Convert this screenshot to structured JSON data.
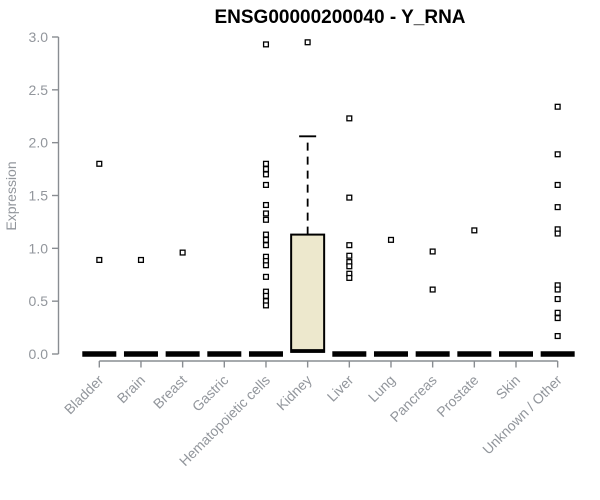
{
  "chart_data": {
    "type": "boxplot",
    "title": "ENSG00000200040 - Y_RNA",
    "ylabel": "Expression",
    "xlabel": "",
    "ylim": [
      0.0,
      3.0
    ],
    "yticks": [
      0.0,
      0.5,
      1.0,
      1.5,
      2.0,
      2.5,
      3.0
    ],
    "grid": false,
    "legend_position": "none",
    "categories": [
      "Bladder",
      "Brain",
      "Breast",
      "Gastric",
      "Hematopoietic cells",
      "Kidney",
      "Liver",
      "Lung",
      "Pancreas",
      "Prostate",
      "Skin",
      "Unknown / Other"
    ],
    "boxes": [
      {
        "category": "Bladder",
        "q1": 0,
        "median": 0,
        "q3": 0,
        "whisker_low": 0,
        "whisker_high": 0,
        "outliers": [
          1.8,
          0.89
        ]
      },
      {
        "category": "Brain",
        "q1": 0,
        "median": 0,
        "q3": 0,
        "whisker_low": 0,
        "whisker_high": 0,
        "outliers": [
          0.89
        ]
      },
      {
        "category": "Breast",
        "q1": 0,
        "median": 0,
        "q3": 0,
        "whisker_low": 0,
        "whisker_high": 0,
        "outliers": [
          0.96
        ]
      },
      {
        "category": "Gastric",
        "q1": 0,
        "median": 0,
        "q3": 0,
        "whisker_low": 0,
        "whisker_high": 0,
        "outliers": []
      },
      {
        "category": "Hematopoietic cells",
        "q1": 0,
        "median": 0,
        "q3": 0,
        "whisker_low": 0,
        "whisker_high": 0,
        "outliers": [
          2.93,
          1.8,
          1.75,
          1.7,
          1.6,
          1.41,
          1.33,
          1.27,
          1.13,
          1.08,
          1.03,
          0.92,
          0.88,
          0.84,
          0.73,
          0.59,
          0.55,
          0.5,
          0.46
        ]
      },
      {
        "category": "Kidney",
        "q1": 0.02,
        "median": 0.03,
        "q3": 1.13,
        "whisker_low": 0.02,
        "whisker_high": 2.06,
        "outliers": [
          2.95
        ]
      },
      {
        "category": "Liver",
        "q1": 0,
        "median": 0,
        "q3": 0,
        "whisker_low": 0,
        "whisker_high": 0,
        "outliers": [
          2.23,
          1.48,
          1.03,
          0.93,
          0.87,
          0.83,
          0.76,
          0.72
        ]
      },
      {
        "category": "Lung",
        "q1": 0,
        "median": 0,
        "q3": 0,
        "whisker_low": 0,
        "whisker_high": 0,
        "outliers": [
          1.08
        ]
      },
      {
        "category": "Pancreas",
        "q1": 0,
        "median": 0,
        "q3": 0,
        "whisker_low": 0,
        "whisker_high": 0,
        "outliers": [
          0.97,
          0.61
        ]
      },
      {
        "category": "Prostate",
        "q1": 0,
        "median": 0,
        "q3": 0,
        "whisker_low": 0,
        "whisker_high": 0,
        "outliers": [
          1.17
        ]
      },
      {
        "category": "Skin",
        "q1": 0,
        "median": 0,
        "q3": 0,
        "whisker_low": 0,
        "whisker_high": 0,
        "outliers": []
      },
      {
        "category": "Unknown / Other",
        "q1": 0,
        "median": 0,
        "q3": 0,
        "whisker_low": 0,
        "whisker_high": 0,
        "outliers": [
          2.34,
          1.89,
          1.6,
          1.39,
          1.18,
          1.14,
          0.65,
          0.61,
          0.52,
          0.39,
          0.34,
          0.17
        ]
      }
    ],
    "colors": {
      "box_fill": "#EDE8CD",
      "box_stroke": "#000000",
      "outlier_stroke": "#000000",
      "outlier_fill": "#FFFFFF",
      "axis_line": "#898D92",
      "tick_label": "#92969C",
      "title": "#000000",
      "background": "#FFFFFF"
    }
  }
}
